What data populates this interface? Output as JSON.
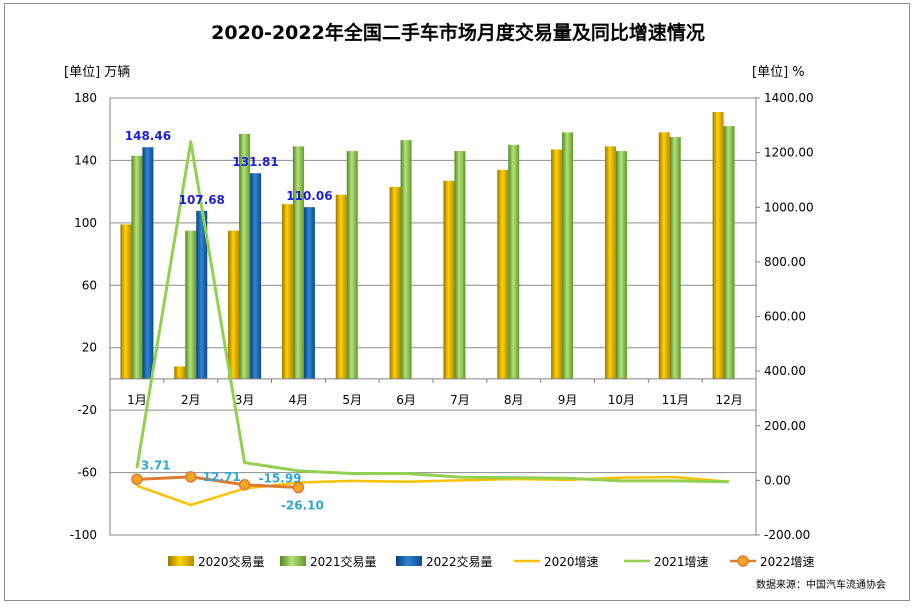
{
  "title": "2020-2022年全国二手车市场月度交易量及同比增速情况",
  "left_unit": "[单位] 万辆",
  "right_unit": "[单位] %",
  "source": "数据来源：中国汽车流通协会",
  "colors": {
    "bar2020": "#E8B400",
    "bar2021": "#8DC63F",
    "bar2022": "#1F6FB5",
    "line2020": "#FFC000",
    "line2021": "#92D050",
    "line2022": "#E07A30",
    "label2022": "#1C1CE0",
    "growthLabel": "#2CA8D8"
  },
  "chart_data": {
    "type": "bar+line",
    "categories": [
      "1月",
      "2月",
      "3月",
      "4月",
      "5月",
      "6月",
      "7月",
      "8月",
      "9月",
      "10月",
      "11月",
      "12月"
    ],
    "y_left": {
      "range": [
        -100,
        180
      ],
      "ticks": [
        180,
        140,
        100,
        60,
        20,
        -20,
        -60,
        -100
      ]
    },
    "y_right": {
      "range": [
        -200,
        1400
      ],
      "ticks": [
        "1400.00",
        "1200.00",
        "1000.00",
        "800.00",
        "600.00",
        "400.00",
        "200.00",
        "0.00",
        "-200.00"
      ]
    },
    "bar_series": [
      {
        "name": "2020交易量",
        "values": [
          99,
          8,
          95,
          112,
          118,
          123,
          127,
          134,
          147,
          149,
          158,
          171
        ]
      },
      {
        "name": "2021交易量",
        "values": [
          143,
          95,
          157,
          149,
          146,
          153,
          146,
          150,
          158,
          146,
          155,
          162
        ]
      },
      {
        "name": "2022交易量",
        "values": [
          148.46,
          107.68,
          131.81,
          110.06,
          null,
          null,
          null,
          null,
          null,
          null,
          null,
          null
        ]
      }
    ],
    "line_series": [
      {
        "name": "2020增速",
        "values": [
          -20,
          -90,
          -30,
          -8,
          -2,
          -5,
          0,
          5,
          2,
          10,
          12,
          -5
        ]
      },
      {
        "name": "2021增速",
        "values": [
          45,
          1240,
          65,
          35,
          25,
          25,
          12,
          10,
          8,
          -2,
          -2,
          -5
        ]
      },
      {
        "name": "2022增速",
        "values": [
          3.71,
          12.71,
          -15.99,
          -26.1,
          null,
          null,
          null,
          null,
          null,
          null,
          null,
          null
        ]
      }
    ],
    "bar_labels_2022": [
      "148.46",
      "107.68",
      "131.81",
      "110.06"
    ],
    "growth_labels_2022": [
      "3.71",
      "12.71",
      "-15.99",
      "-26.10"
    ],
    "legend": [
      "2020交易量",
      "2021交易量",
      "2022交易量",
      "2020增速",
      "2021增速",
      "2022增速"
    ]
  }
}
